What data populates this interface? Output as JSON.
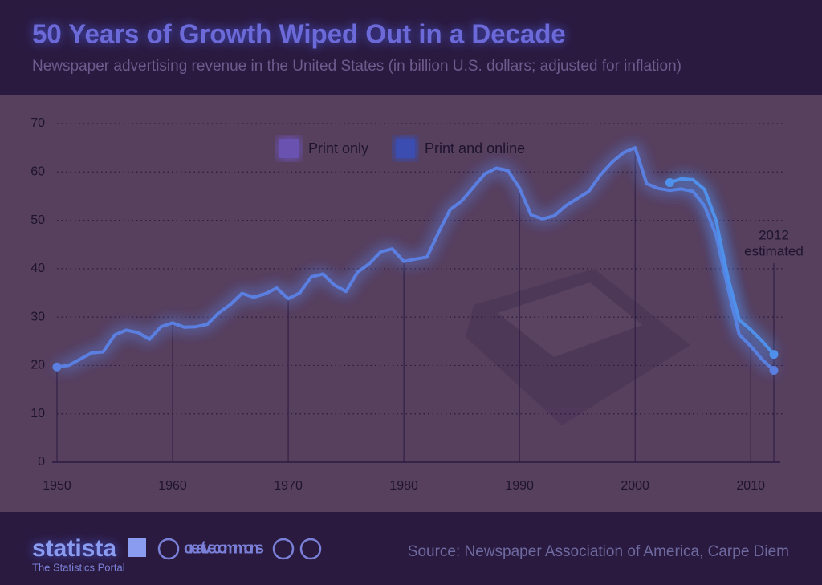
{
  "chart_data": {
    "type": "line",
    "title": "50 Years of Growth Wiped Out in a Decade",
    "subtitle": "Newspaper advertising revenue in the United States (in billion U.S. dollars; adjusted for inflation)",
    "x": [
      1950,
      1951,
      1952,
      1953,
      1954,
      1955,
      1956,
      1957,
      1958,
      1959,
      1960,
      1961,
      1962,
      1963,
      1964,
      1965,
      1966,
      1967,
      1968,
      1969,
      1970,
      1971,
      1972,
      1973,
      1974,
      1975,
      1976,
      1977,
      1978,
      1979,
      1980,
      1981,
      1982,
      1983,
      1984,
      1985,
      1986,
      1987,
      1988,
      1989,
      1990,
      1991,
      1992,
      1993,
      1994,
      1995,
      1996,
      1997,
      1998,
      1999,
      2000,
      2001,
      2002,
      2003,
      2004,
      2005,
      2006,
      2007,
      2008,
      2009,
      2010,
      2011,
      2012
    ],
    "series": [
      {
        "name": "Print only",
        "color": "#5a7fe0",
        "swatch": "#6a52b0",
        "values": [
          19.7,
          20.0,
          21.3,
          22.6,
          22.8,
          26.3,
          27.3,
          26.8,
          25.4,
          28.0,
          28.8,
          27.9,
          28.0,
          28.5,
          30.9,
          32.6,
          34.9,
          34.1,
          34.8,
          36.0,
          33.8,
          35.0,
          38.3,
          38.9,
          36.6,
          35.3,
          39.3,
          41.0,
          43.5,
          44.1,
          41.5,
          42.0,
          42.4,
          47.5,
          52.2,
          54.0,
          56.8,
          59.6,
          60.8,
          60.3,
          56.7,
          51.1,
          50.3,
          50.9,
          53.0,
          54.5,
          56.0,
          59.4,
          62.0,
          64.0,
          65.0,
          57.6,
          56.6,
          56.2,
          56.5,
          56.0,
          53.0,
          47.0,
          36.3,
          26.4,
          24.0,
          21.2,
          19.0
        ]
      },
      {
        "name": "Print and online",
        "color": "#4f90ea",
        "swatch": "#3a4db0",
        "values": [
          null,
          null,
          null,
          null,
          null,
          null,
          null,
          null,
          null,
          null,
          null,
          null,
          null,
          null,
          null,
          null,
          null,
          null,
          null,
          null,
          null,
          null,
          null,
          null,
          null,
          null,
          null,
          null,
          null,
          null,
          null,
          null,
          null,
          null,
          null,
          null,
          null,
          null,
          null,
          null,
          null,
          null,
          null,
          null,
          null,
          null,
          null,
          null,
          null,
          null,
          null,
          null,
          null,
          57.8,
          58.6,
          58.4,
          56.4,
          50.0,
          38.5,
          29.4,
          27.4,
          25.0,
          22.3
        ]
      }
    ],
    "xlim": [
      1950,
      2012
    ],
    "xticks": [
      1950,
      1960,
      1970,
      1980,
      1990,
      2000,
      2010
    ],
    "ylim": [
      0,
      70
    ],
    "yticks": [
      0,
      10,
      20,
      30,
      40,
      50,
      60,
      70
    ],
    "grid": true,
    "legend": "top",
    "annotation": {
      "x": 2012,
      "lines": [
        "2012",
        "estimated"
      ]
    }
  },
  "footer": {
    "brand": "statista",
    "tagline": "The Statistics Portal",
    "license": "creative commons",
    "source": "Source: Newspaper Association of America, Carpe Diem"
  }
}
